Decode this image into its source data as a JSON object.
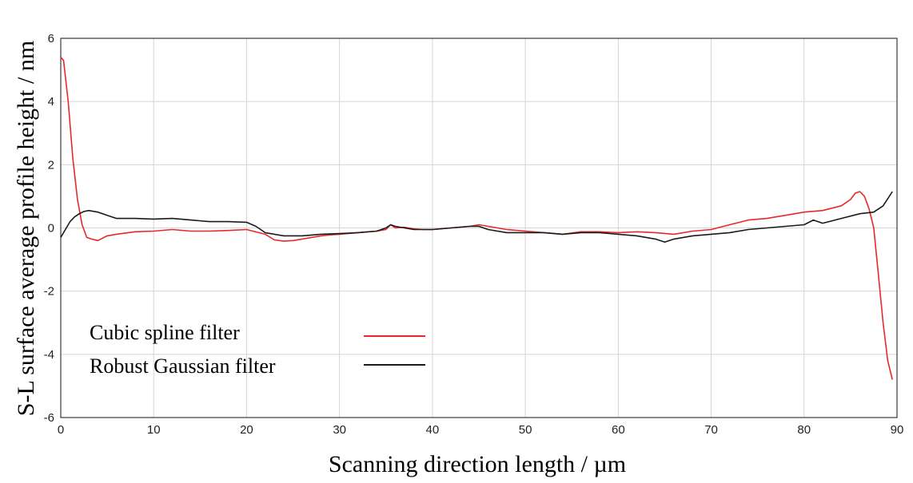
{
  "chart_data": {
    "type": "line",
    "xlabel": "Scanning direction length / µm",
    "ylabel": "S-L surface average profile height / nm",
    "xlim": [
      0,
      90
    ],
    "ylim": [
      -6,
      6
    ],
    "xticks": [
      0,
      10,
      20,
      30,
      40,
      50,
      60,
      70,
      80,
      90
    ],
    "yticks": [
      -6,
      -4,
      -2,
      0,
      2,
      4,
      6
    ],
    "grid": true,
    "legend_position": "bottom-left",
    "series": [
      {
        "name": "Cubic spline filter",
        "color": "#e8282b",
        "x": [
          0,
          0.3,
          0.8,
          1.3,
          1.8,
          2.3,
          2.8,
          3.3,
          4,
          5,
          6,
          8,
          10,
          12,
          14,
          16,
          18,
          20,
          22,
          23,
          24,
          25,
          26,
          27,
          28,
          29,
          30,
          32,
          34,
          35,
          35.5,
          36,
          37,
          38,
          39,
          40,
          42,
          44,
          45,
          46,
          48,
          50,
          52,
          54,
          56,
          58,
          60,
          62,
          64,
          66,
          68,
          70,
          72,
          74,
          76,
          78,
          80,
          82,
          84,
          85,
          85.5,
          86,
          86.5,
          87,
          87.5,
          88,
          88.5,
          89,
          89.5
        ],
        "y": [
          5.4,
          5.3,
          4.0,
          2.2,
          0.9,
          0.1,
          -0.3,
          -0.35,
          -0.4,
          -0.25,
          -0.2,
          -0.12,
          -0.1,
          -0.05,
          -0.1,
          -0.1,
          -0.08,
          -0.05,
          -0.2,
          -0.38,
          -0.42,
          -0.4,
          -0.35,
          -0.3,
          -0.25,
          -0.22,
          -0.2,
          -0.15,
          -0.1,
          -0.05,
          0.1,
          0.0,
          0.02,
          -0.03,
          -0.05,
          -0.05,
          0.0,
          0.05,
          0.1,
          0.05,
          -0.05,
          -0.1,
          -0.15,
          -0.2,
          -0.12,
          -0.12,
          -0.15,
          -0.12,
          -0.15,
          -0.2,
          -0.1,
          -0.05,
          0.1,
          0.25,
          0.3,
          0.4,
          0.5,
          0.55,
          0.7,
          0.9,
          1.1,
          1.15,
          1.0,
          0.6,
          0.0,
          -1.5,
          -3.0,
          -4.2,
          -4.8
        ]
      },
      {
        "name": "Robust Gaussian filter",
        "color": "#1a1a1a",
        "x": [
          0,
          0.5,
          1,
          1.5,
          2,
          2.5,
          3,
          4,
          5,
          6,
          8,
          10,
          12,
          14,
          16,
          18,
          20,
          21,
          22,
          23,
          24,
          26,
          28,
          30,
          32,
          34,
          35,
          35.5,
          36,
          37,
          38,
          40,
          42,
          44,
          45,
          46,
          48,
          50,
          52,
          54,
          56,
          58,
          60,
          62,
          64,
          65,
          66,
          68,
          70,
          72,
          74,
          76,
          78,
          80,
          81,
          82,
          84,
          86,
          87.5,
          88.5,
          89.5
        ],
        "y": [
          -0.3,
          -0.05,
          0.2,
          0.35,
          0.45,
          0.52,
          0.55,
          0.5,
          0.4,
          0.3,
          0.3,
          0.28,
          0.3,
          0.25,
          0.2,
          0.2,
          0.18,
          0.05,
          -0.15,
          -0.2,
          -0.25,
          -0.25,
          -0.2,
          -0.18,
          -0.15,
          -0.1,
          0.0,
          0.1,
          0.05,
          0.0,
          -0.05,
          -0.05,
          0.0,
          0.05,
          0.05,
          -0.05,
          -0.15,
          -0.15,
          -0.15,
          -0.2,
          -0.15,
          -0.15,
          -0.2,
          -0.25,
          -0.35,
          -0.45,
          -0.35,
          -0.25,
          -0.2,
          -0.15,
          -0.05,
          0.0,
          0.05,
          0.1,
          0.25,
          0.15,
          0.3,
          0.45,
          0.5,
          0.7,
          1.15
        ]
      }
    ]
  }
}
